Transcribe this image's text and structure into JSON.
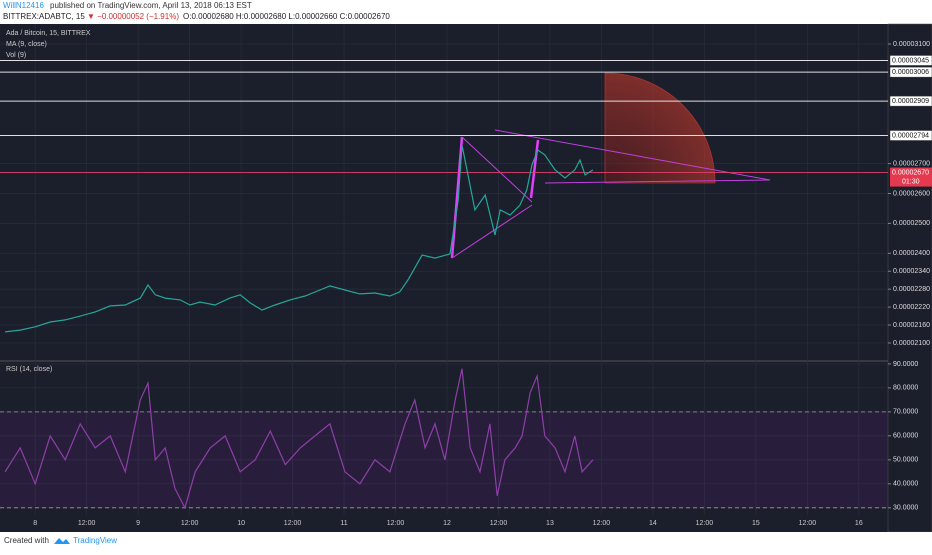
{
  "header": {
    "author": "WillN12416",
    "published": "published on TradingView.com, April 13, 2018 06:13 EST",
    "symbol": "BITTREX:ADABTC, 15",
    "change": "▼ −0.00000052 (−1.91%)",
    "ohlc": "O:0.00002680 H:0.00002680 L:0.00002660 C:0.00002670"
  },
  "footer": {
    "created": "Created with",
    "brand": "TradingView"
  },
  "chart_data": [
    {
      "type": "line",
      "title": "Ada / Bitcoin, 15, BITTREX",
      "indicators": [
        "MA (9, close)",
        "Vol (9)"
      ],
      "color": "#26a69a",
      "x": [
        -7.0,
        -3.5,
        0,
        3.5,
        7.0,
        10.5,
        14.0,
        17.5,
        21.0,
        24.5,
        26.3,
        28.0,
        30.3,
        33.8,
        36.1,
        38.4,
        41.9,
        45.4,
        47.8,
        50.1,
        52.9,
        55.9,
        59.4,
        62.9,
        66.4,
        68.7,
        72.2,
        75.7,
        79.2,
        82.7,
        85.0,
        86.9,
        88.5,
        90.2,
        93.2,
        96.7,
        98.6,
        99.5,
        100.9,
        102.5,
        104.9,
        107.2,
        108.4,
        110.7,
        113.0,
        114.6,
        115.8,
        117.2,
        118.8,
        121.2,
        123.5,
        125.8,
        127.0,
        128.2,
        130.0
      ],
      "values": [
        2.137e-05,
        2.143e-05,
        2.154e-05,
        2.17e-05,
        2.177e-05,
        2.19e-05,
        2.204e-05,
        2.224e-05,
        2.227e-05,
        2.25e-05,
        2.294e-05,
        2.261e-05,
        2.25e-05,
        2.244e-05,
        2.227e-05,
        2.237e-05,
        2.227e-05,
        2.25e-05,
        2.261e-05,
        2.234e-05,
        2.21e-05,
        2.227e-05,
        2.244e-05,
        2.257e-05,
        2.277e-05,
        2.291e-05,
        2.277e-05,
        2.264e-05,
        2.267e-05,
        2.257e-05,
        2.271e-05,
        2.311e-05,
        2.351e-05,
        2.394e-05,
        2.384e-05,
        2.398e-05,
        2.578e-05,
        2.762e-05,
        2.662e-05,
        2.545e-05,
        2.595e-05,
        2.461e-05,
        2.545e-05,
        2.528e-05,
        2.561e-05,
        2.612e-05,
        2.695e-05,
        2.745e-05,
        2.729e-05,
        2.679e-05,
        2.652e-05,
        2.679e-05,
        2.712e-05,
        2.662e-05,
        2.679e-05
      ],
      "xlim": [
        -8.2,
        198.8
      ],
      "ylim": [
        2.043e-05,
        3.167e-05
      ],
      "yticks": [
        {
          "value": 3.1e-05,
          "label": "0.00003100"
        },
        {
          "value": 2.7e-05,
          "label": "0.00002700"
        },
        {
          "value": 2.6e-05,
          "label": "0.00002600"
        },
        {
          "value": 2.5e-05,
          "label": "0.00002500"
        },
        {
          "value": 2.4e-05,
          "label": "0.00002400"
        },
        {
          "value": 2.34e-05,
          "label": "0.00002340"
        },
        {
          "value": 2.28e-05,
          "label": "0.00002280"
        },
        {
          "value": 2.22e-05,
          "label": "0.00002220"
        },
        {
          "value": 2.16e-05,
          "label": "0.00002160"
        },
        {
          "value": 2.1e-05,
          "label": "0.00002100"
        }
      ],
      "levels": [
        {
          "value": 3.045e-05,
          "label": "0.00003045"
        },
        {
          "value": 3.006e-05,
          "label": "0.00003006"
        },
        {
          "value": 2.909e-05,
          "label": "0.00002909"
        },
        {
          "value": 2.794e-05,
          "label": "0.00002794"
        }
      ],
      "last": {
        "value": 2.67e-05,
        "label": "0.00002670"
      },
      "countdown": "01:30"
    },
    {
      "type": "line",
      "title": "RSI (14, close)",
      "color": "#8e3fa8",
      "x": [
        -7.0,
        -3.5,
        0,
        3.5,
        7.0,
        10.5,
        14.0,
        17.5,
        21.0,
        24.5,
        26.3,
        28.0,
        30.3,
        32.6,
        34.9,
        37.3,
        40.8,
        44.3,
        47.8,
        51.3,
        54.8,
        58.3,
        61.8,
        65.2,
        68.7,
        72.2,
        75.7,
        79.2,
        82.7,
        86.2,
        88.5,
        90.9,
        93.2,
        95.5,
        97.9,
        99.5,
        101.4,
        103.7,
        106.0,
        107.7,
        109.5,
        111.9,
        113.5,
        115.4,
        117.0,
        118.8,
        121.2,
        123.5,
        125.8,
        127.5,
        130.0
      ],
      "values": [
        45,
        55,
        40,
        60,
        50,
        65,
        55,
        60,
        45,
        75,
        82,
        50,
        55,
        38,
        30,
        45,
        55,
        60,
        45,
        50,
        62,
        48,
        55,
        60,
        65,
        45,
        40,
        50,
        45,
        65,
        75,
        55,
        65,
        50,
        75,
        88,
        55,
        45,
        65,
        35,
        50,
        55,
        60,
        78,
        85,
        60,
        55,
        45,
        60,
        45,
        50
      ],
      "xlim": [
        -8.2,
        198.8
      ],
      "ylim": [
        27.0,
        90.8
      ],
      "band": [
        30,
        70
      ],
      "yticks": [
        {
          "value": 90,
          "label": "90.0000"
        },
        {
          "value": 80,
          "label": "80.0000"
        },
        {
          "value": 70,
          "label": "70.0000"
        },
        {
          "value": 60,
          "label": "60.0000"
        },
        {
          "value": 50,
          "label": "50.0000"
        },
        {
          "value": 40,
          "label": "40.0000"
        },
        {
          "value": 30,
          "label": "30.0000"
        }
      ],
      "xticks": [
        {
          "value": 0,
          "label": "8"
        },
        {
          "value": 12,
          "label": "12:00"
        },
        {
          "value": 24,
          "label": "9"
        },
        {
          "value": 36,
          "label": "12:00"
        },
        {
          "value": 48,
          "label": "10"
        },
        {
          "value": 60,
          "label": "12:00"
        },
        {
          "value": 72,
          "label": "11"
        },
        {
          "value": 84,
          "label": "12:00"
        },
        {
          "value": 96,
          "label": "12"
        },
        {
          "value": 108,
          "label": "12:00"
        },
        {
          "value": 120,
          "label": "13"
        },
        {
          "value": 132,
          "label": "12:00"
        },
        {
          "value": 144,
          "label": "14"
        },
        {
          "value": 156,
          "label": "12:00"
        },
        {
          "value": 168,
          "label": "15"
        },
        {
          "value": 180,
          "label": "12:00"
        },
        {
          "value": 192,
          "label": "16"
        }
      ]
    }
  ]
}
